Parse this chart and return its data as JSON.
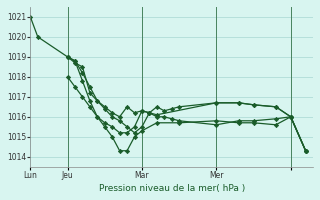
{
  "background_color": "#d8f5f0",
  "grid_color": "#b0ddd8",
  "line_color": "#1a5c2a",
  "title": "Pression niveau de la mer( hPa )",
  "ylim": [
    1013.5,
    1021.5
  ],
  "yticks": [
    1014,
    1015,
    1016,
    1017,
    1018,
    1019,
    1020,
    1021
  ],
  "series": [
    {
      "x": [
        0,
        2,
        10,
        12,
        14,
        16,
        18,
        20,
        22,
        24,
        26,
        28,
        30,
        32,
        34,
        36,
        38,
        40,
        50,
        56,
        60,
        66,
        70,
        74
      ],
      "y": [
        1021,
        1020,
        1019,
        1018.7,
        1018.5,
        1017.2,
        1016.8,
        1016.5,
        1016.2,
        1016.0,
        1016.5,
        1016.2,
        1016.3,
        1016.2,
        1016.5,
        1016.3,
        1016.4,
        1016.5,
        1016.7,
        1016.7,
        1016.6,
        1016.5,
        1016.0,
        1014.3
      ]
    },
    {
      "x": [
        10,
        12,
        14,
        16,
        18,
        20,
        22,
        24,
        26,
        28,
        30,
        32,
        34,
        36,
        38,
        40,
        50,
        56,
        60,
        66,
        70,
        74
      ],
      "y": [
        1019,
        1018.8,
        1018.2,
        1017.5,
        1016.8,
        1016.4,
        1016.0,
        1015.8,
        1015.5,
        1015.2,
        1015.5,
        1016.2,
        1016.0,
        1016.0,
        1015.9,
        1015.8,
        1015.6,
        1015.8,
        1015.8,
        1015.9,
        1016.0,
        1014.3
      ]
    },
    {
      "x": [
        10,
        12,
        14,
        16,
        18,
        20,
        22,
        24,
        26,
        28,
        30,
        32,
        34,
        50,
        56,
        60,
        66,
        70,
        74
      ],
      "y": [
        1018,
        1017.5,
        1017.0,
        1016.5,
        1016.0,
        1015.7,
        1015.5,
        1015.2,
        1015.2,
        1015.5,
        1016.3,
        1016.2,
        1016.1,
        1016.7,
        1016.7,
        1016.6,
        1016.5,
        1016.0,
        1014.3
      ]
    },
    {
      "x": [
        10,
        12,
        14,
        16,
        18,
        20,
        22,
        24,
        26,
        28,
        30,
        34,
        40,
        50,
        56,
        60,
        66,
        70,
        74
      ],
      "y": [
        1019,
        1018.8,
        1017.8,
        1016.8,
        1016.0,
        1015.5,
        1015.0,
        1014.3,
        1014.3,
        1015.0,
        1015.3,
        1015.7,
        1015.7,
        1015.8,
        1015.7,
        1015.7,
        1015.6,
        1016.0,
        1014.3
      ]
    }
  ],
  "vline_positions": [
    10,
    30,
    50,
    70
  ],
  "tick_positions": [
    0,
    10,
    30,
    50,
    70
  ],
  "tick_labels": [
    "Lun",
    "Jeu",
    "Mar",
    "Mer",
    ""
  ]
}
